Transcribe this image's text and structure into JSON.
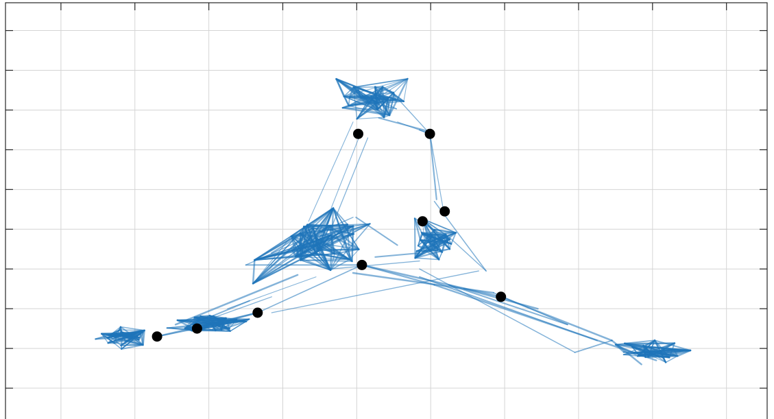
{
  "chart_data": {
    "type": "scatter",
    "title": "",
    "xlabel": "",
    "ylabel": "",
    "xlim": [
      0,
      1030
    ],
    "ylim": [
      0,
      10.7
    ],
    "x_gridlines": [
      75,
      175,
      275,
      375,
      475,
      575,
      675,
      775,
      875,
      975
    ],
    "y_gridlines": [
      1,
      2,
      3,
      4,
      5,
      6,
      7,
      8,
      9,
      10
    ],
    "grid": true,
    "tick_labels_visible": false,
    "legend": "none",
    "colors": {
      "edges": "#1f74ba",
      "hubs": "#000000",
      "grid": "#d4d4d4",
      "axes": "#262626"
    },
    "series": [
      {
        "kind": "hub-points",
        "points": [
          {
            "x": 205,
            "y": 2.3
          },
          {
            "x": 259,
            "y": 2.5
          },
          {
            "x": 341,
            "y": 2.9
          },
          {
            "x": 482,
            "y": 4.1
          },
          {
            "x": 477,
            "y": 7.4
          },
          {
            "x": 574,
            "y": 7.4
          },
          {
            "x": 564,
            "y": 5.2
          },
          {
            "x": 594,
            "y": 5.45
          },
          {
            "x": 670,
            "y": 3.3
          }
        ]
      },
      {
        "kind": "graph-edges",
        "clusters": [
          {
            "cx": 163,
            "cy": 2.3,
            "sx": 20,
            "sy": 0.12,
            "edges": 140
          },
          {
            "cx": 288,
            "cy": 2.65,
            "sx": 32,
            "sy": 0.16,
            "edges": 150
          },
          {
            "cx": 500,
            "cy": 8.3,
            "sx": 20,
            "sy": 0.3,
            "edges": 150
          },
          {
            "cx": 430,
            "cy": 4.6,
            "sx": 42,
            "sy": 0.38,
            "edges": 210
          },
          {
            "cx": 577,
            "cy": 4.75,
            "sx": 24,
            "sy": 0.3,
            "edges": 150
          },
          {
            "cx": 860,
            "cy": 1.9,
            "sx": 28,
            "sy": 0.13,
            "edges": 120
          }
        ],
        "bridges": [
          [
            205,
            2.3,
            259,
            2.5
          ],
          [
            259,
            2.5,
            341,
            2.9
          ],
          [
            205,
            2.3,
            341,
            2.9
          ],
          [
            230,
            2.6,
            395,
            3.85
          ],
          [
            245,
            2.55,
            330,
            3.2
          ],
          [
            270,
            2.7,
            360,
            3.3
          ],
          [
            341,
            2.9,
            482,
            4.1
          ],
          [
            360,
            2.9,
            640,
            3.95
          ],
          [
            300,
            3.0,
            420,
            3.8
          ],
          [
            325,
            4.1,
            482,
            4.1
          ],
          [
            325,
            4.1,
            470,
            5.3
          ],
          [
            360,
            4.4,
            420,
            5.1
          ],
          [
            440,
            4.0,
            560,
            4.2
          ],
          [
            482,
            4.1,
            670,
            3.3
          ],
          [
            470,
            3.9,
            660,
            3.4
          ],
          [
            482,
            4.1,
            580,
            3.6
          ],
          [
            500,
            4.3,
            560,
            4.4
          ],
          [
            474,
            5.3,
            530,
            4.6
          ],
          [
            410,
            5.2,
            470,
            7.7
          ],
          [
            440,
            5.0,
            490,
            7.3
          ],
          [
            425,
            4.8,
            480,
            7.4
          ],
          [
            574,
            7.4,
            583,
            5.75
          ],
          [
            574,
            7.4,
            593,
            5.4
          ],
          [
            574,
            7.4,
            530,
            7.7
          ],
          [
            574,
            7.4,
            560,
            7.5
          ],
          [
            520,
            8.5,
            574,
            7.4
          ],
          [
            505,
            7.8,
            575,
            7.45
          ],
          [
            580,
            5.7,
            650,
            3.95
          ],
          [
            600,
            4.8,
            650,
            3.95
          ],
          [
            560,
            4.0,
            770,
            1.9
          ],
          [
            580,
            3.6,
            880,
            1.7
          ],
          [
            560,
            3.8,
            800,
            2.2
          ],
          [
            670,
            3.3,
            820,
            2.2
          ],
          [
            600,
            3.6,
            760,
            2.6
          ],
          [
            770,
            1.9,
            820,
            2.2
          ],
          [
            820,
            2.2,
            860,
            1.6
          ],
          [
            620,
            3.5,
            720,
            3.0
          ],
          [
            660,
            3.4,
            760,
            2.6
          ]
        ]
      }
    ]
  }
}
